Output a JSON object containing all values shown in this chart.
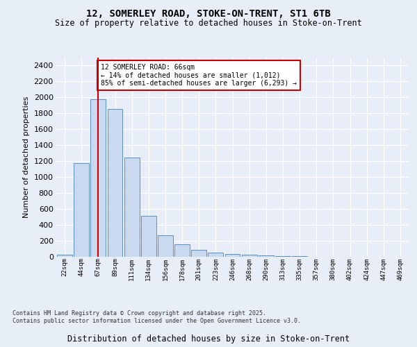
{
  "title_line1": "12, SOMERLEY ROAD, STOKE-ON-TRENT, ST1 6TB",
  "title_line2": "Size of property relative to detached houses in Stoke-on-Trent",
  "xlabel": "Distribution of detached houses by size in Stoke-on-Trent",
  "ylabel": "Number of detached properties",
  "categories": [
    "22sqm",
    "44sqm",
    "67sqm",
    "89sqm",
    "111sqm",
    "134sqm",
    "156sqm",
    "178sqm",
    "201sqm",
    "223sqm",
    "246sqm",
    "268sqm",
    "290sqm",
    "313sqm",
    "335sqm",
    "357sqm",
    "380sqm",
    "402sqm",
    "424sqm",
    "447sqm",
    "469sqm"
  ],
  "values": [
    25,
    1175,
    1975,
    1850,
    1245,
    510,
    270,
    155,
    85,
    50,
    35,
    30,
    15,
    8,
    5,
    4,
    3,
    2,
    2,
    1,
    1
  ],
  "bar_color": "#c9d9f0",
  "bar_edge_color": "#5b8fc9",
  "property_bin_index": 2,
  "red_line_color": "#cc0000",
  "annotation_text_line1": "12 SOMERLEY ROAD: 66sqm",
  "annotation_text_line2": "← 14% of detached houses are smaller (1,012)",
  "annotation_text_line3": "85% of semi-detached houses are larger (6,293) →",
  "annotation_box_facecolor": "#ffffff",
  "annotation_box_edgecolor": "#cc0000",
  "ylim": [
    0,
    2500
  ],
  "yticks": [
    0,
    200,
    400,
    600,
    800,
    1000,
    1200,
    1400,
    1600,
    1800,
    2000,
    2200,
    2400
  ],
  "background_color": "#e8eef7",
  "grid_color": "#ffffff",
  "footer_line1": "Contains HM Land Registry data © Crown copyright and database right 2025.",
  "footer_line2": "Contains public sector information licensed under the Open Government Licence v3.0."
}
